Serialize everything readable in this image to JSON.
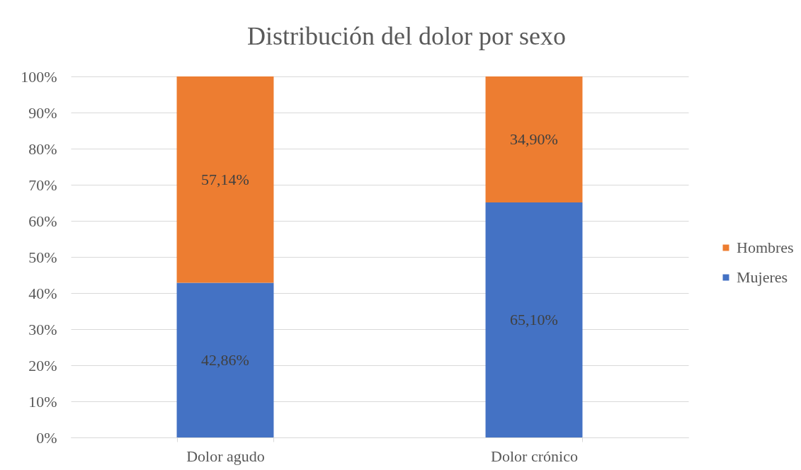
{
  "chart_data": {
    "type": "bar",
    "title": "Distribución  del dolor por sexo",
    "categories": [
      "Dolor agudo",
      "Dolor crónico"
    ],
    "series": [
      {
        "name": "Mujeres",
        "color": "#4472c4",
        "values": [
          42.86,
          65.1
        ],
        "value_labels": [
          "42,86%",
          "65,10%"
        ]
      },
      {
        "name": "Hombres",
        "color": "#ed7d31",
        "values": [
          57.14,
          34.9
        ],
        "value_labels": [
          "57,14%",
          "34,90%"
        ]
      }
    ],
    "stacked": true,
    "ylim": [
      0,
      100
    ],
    "yticks": [
      {
        "value": 0,
        "label": "0%"
      },
      {
        "value": 10,
        "label": "10%"
      },
      {
        "value": 20,
        "label": "20%"
      },
      {
        "value": 30,
        "label": "30%"
      },
      {
        "value": 40,
        "label": "40%"
      },
      {
        "value": 50,
        "label": "50%"
      },
      {
        "value": 60,
        "label": "60%"
      },
      {
        "value": 70,
        "label": "70%"
      },
      {
        "value": 80,
        "label": "80%"
      },
      {
        "value": 90,
        "label": "90%"
      },
      {
        "value": 100,
        "label": "100%"
      }
    ],
    "grid": "y",
    "legend": "right"
  }
}
